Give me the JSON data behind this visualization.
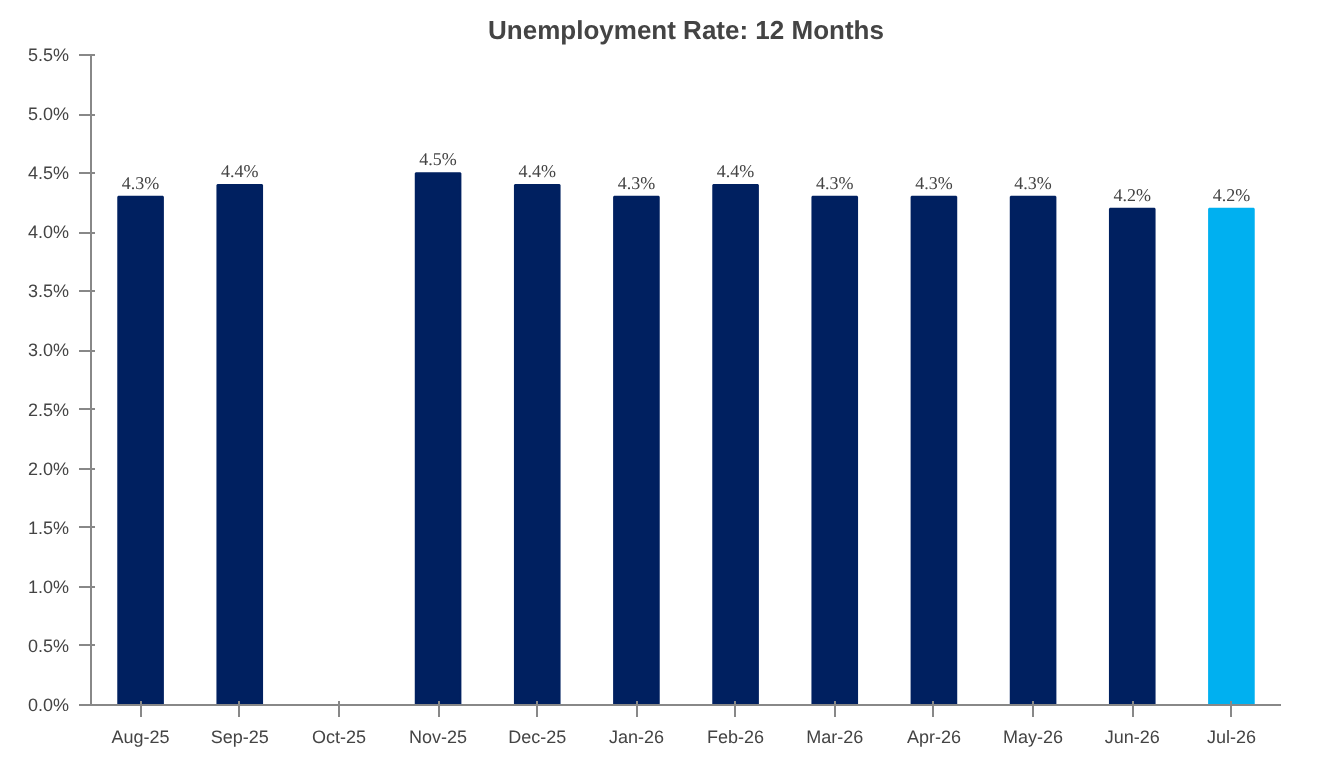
{
  "chart_data": {
    "type": "bar",
    "title": "Unemployment Rate: 12 Months",
    "categories": [
      "Aug-25",
      "Sep-25",
      "Oct-25",
      "Nov-25",
      "Dec-25",
      "Jan-26",
      "Feb-26",
      "Mar-26",
      "Apr-26",
      "May-26",
      "Jun-26",
      "Jul-26"
    ],
    "values": [
      4.3,
      4.4,
      null,
      4.5,
      4.4,
      4.3,
      4.4,
      4.3,
      4.3,
      4.3,
      4.2,
      4.2
    ],
    "colors": [
      "#002060",
      "#002060",
      "#002060",
      "#002060",
      "#002060",
      "#002060",
      "#002060",
      "#002060",
      "#002060",
      "#002060",
      "#002060",
      "#00b0f0"
    ],
    "value_labels": [
      "4.3%",
      "4.4%",
      null,
      "4.5%",
      "4.4%",
      "4.3%",
      "4.4%",
      "4.3%",
      "4.3%",
      "4.3%",
      "4.2%",
      "4.2%"
    ],
    "ylim": [
      0,
      5.5
    ],
    "yticks": [
      {
        "value": 0,
        "label": "0.0%"
      },
      {
        "value": 0.5,
        "label": "0.5%"
      },
      {
        "value": 1,
        "label": "1.0%"
      },
      {
        "value": 1.5,
        "label": "1.5%"
      },
      {
        "value": 2,
        "label": "2.0%"
      },
      {
        "value": 2.5,
        "label": "2.5%"
      },
      {
        "value": 3,
        "label": "3.0%"
      },
      {
        "value": 3.5,
        "label": "3.5%"
      },
      {
        "value": 4,
        "label": "4.0%"
      },
      {
        "value": 4.5,
        "label": "4.5%"
      },
      {
        "value": 5,
        "label": "5.0%"
      },
      {
        "value": 5.5,
        "label": "5.5%"
      }
    ],
    "grid": false
  }
}
